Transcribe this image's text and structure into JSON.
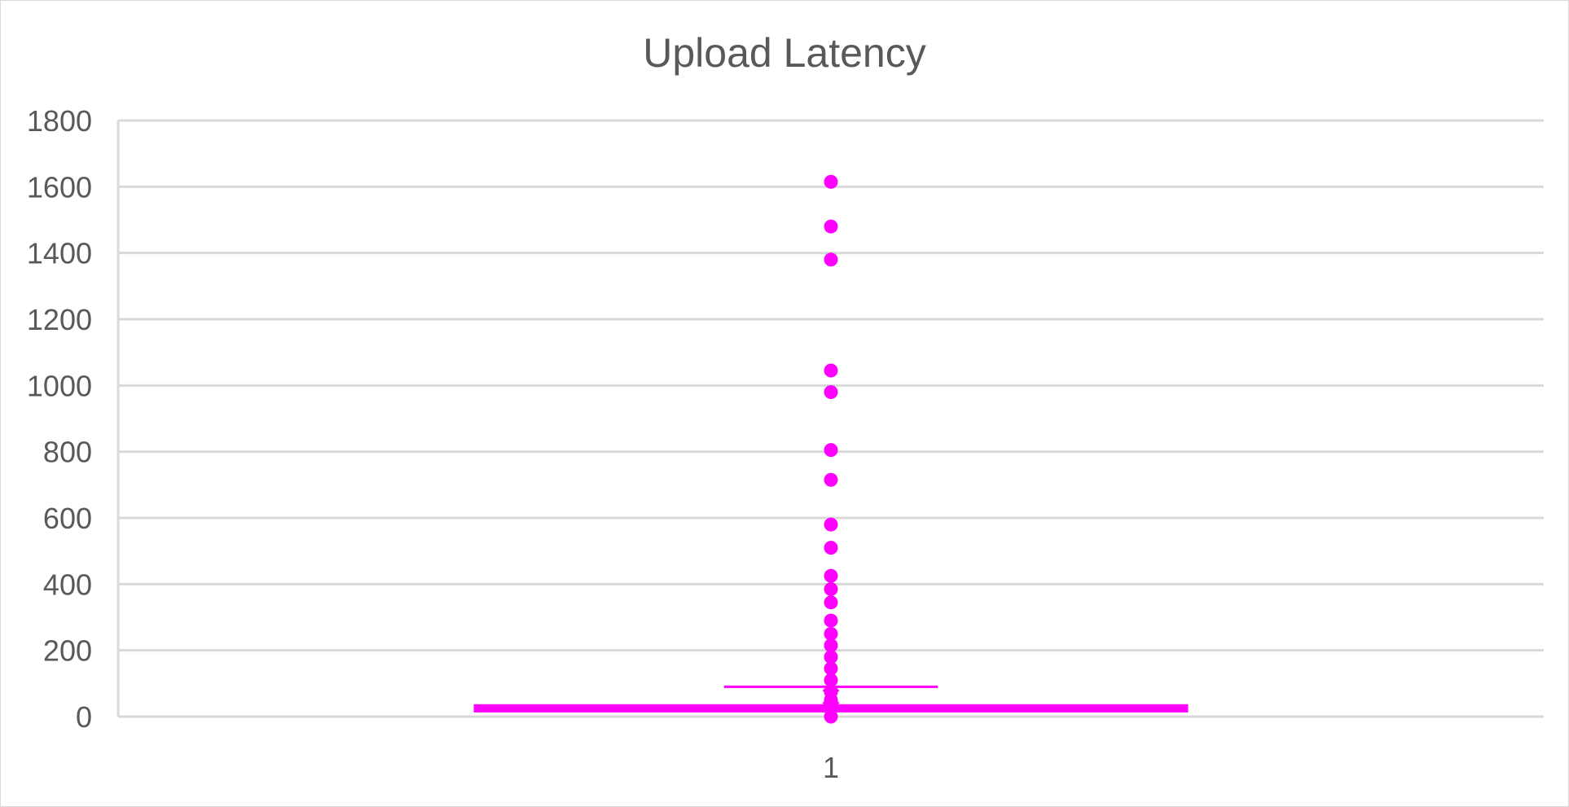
{
  "chart_data": {
    "type": "box",
    "title": "Upload Latency",
    "categories": [
      "1"
    ],
    "y_ticks": [
      "0",
      "200",
      "400",
      "600",
      "800",
      "1000",
      "1200",
      "1400",
      "1600",
      "1800"
    ],
    "ylim": [
      0,
      1800
    ],
    "grid": true,
    "legend": "none",
    "color": "#ff00ff",
    "series": [
      {
        "category": "1",
        "min": 0,
        "q1": 15,
        "median": 25,
        "q3": 35,
        "mean": 60,
        "whisker_high": 90,
        "outliers": [
          0,
          50,
          75,
          110,
          145,
          180,
          215,
          250,
          290,
          345,
          385,
          425,
          510,
          580,
          715,
          805,
          980,
          1045,
          1380,
          1480,
          1615
        ]
      }
    ]
  }
}
